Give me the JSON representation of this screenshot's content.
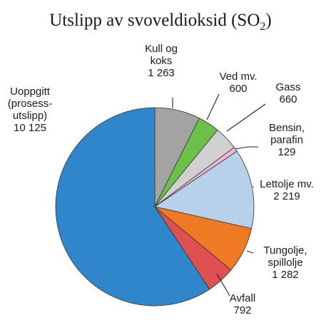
{
  "chart_data": {
    "type": "pie",
    "title": "Utslipp av svoveldioksid (SO",
    "title_subscript": "2",
    "title_suffix": ")",
    "start": "12 o'clock",
    "direction": "clockwise",
    "slices": [
      {
        "lines": [
          "Kull og",
          "koks"
        ],
        "value_label": "1 263",
        "value": 1263,
        "color": "#a3a3a3"
      },
      {
        "lines": [
          "Ved mv."
        ],
        "value_label": "600",
        "value": 600,
        "color": "#6cc04a"
      },
      {
        "lines": [
          "Gass"
        ],
        "value_label": "660",
        "value": 660,
        "color": "#d0d0d0"
      },
      {
        "lines": [
          "Bensin,",
          "parafin"
        ],
        "value_label": "129",
        "value": 129,
        "color": "#f1b8d4"
      },
      {
        "lines": [
          "Lettolje mv."
        ],
        "value_label": "2 219",
        "value": 2219,
        "color": "#b7d1ea"
      },
      {
        "lines": [
          "Tungolje,",
          "spillolje"
        ],
        "value_label": "1 282",
        "value": 1282,
        "color": "#f07a23"
      },
      {
        "lines": [
          "Avfall"
        ],
        "value_label": "792",
        "value": 792,
        "color": "#e05050"
      },
      {
        "lines": [
          "Uoppgitt",
          "(prosess-",
          "utslipp)"
        ],
        "value_label": "10 125",
        "value": 10125,
        "color": "#2f86cb"
      }
    ]
  }
}
